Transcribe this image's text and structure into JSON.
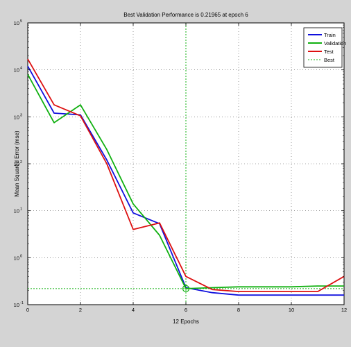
{
  "chart_data": {
    "type": "line",
    "title": "Best Validation Performance is 0.21965 at epoch 6",
    "xlabel": "12 Epochs",
    "ylabel": "Mean Squared Error  (mse)",
    "xlim": [
      0,
      12
    ],
    "ylim": [
      0.1,
      100000
    ],
    "yscale": "log",
    "grid": true,
    "legend_position": "top-right",
    "x_ticks": [
      0,
      2,
      4,
      6,
      8,
      10,
      12
    ],
    "x_tick_labels": [
      "0",
      "2",
      "4",
      "6",
      "8",
      "10",
      "12"
    ],
    "y_ticks": [
      0.1,
      1,
      10,
      100,
      1000,
      10000,
      100000
    ],
    "y_tick_labels": [
      {
        "base": "10",
        "exp": "-1"
      },
      {
        "base": "10",
        "exp": "0"
      },
      {
        "base": "10",
        "exp": "1"
      },
      {
        "base": "10",
        "exp": "2"
      },
      {
        "base": "10",
        "exp": "3"
      },
      {
        "base": "10",
        "exp": "4"
      },
      {
        "base": "10",
        "exp": "5"
      }
    ],
    "series": [
      {
        "name": "Train",
        "color": "#1010dd",
        "x": [
          0,
          1,
          2,
          3,
          4,
          5,
          6,
          7,
          8,
          9,
          10,
          11,
          12
        ],
        "y": [
          12000,
          1200,
          1100,
          120,
          9,
          5.3,
          0.23,
          0.18,
          0.16,
          0.16,
          0.16,
          0.16,
          0.16
        ]
      },
      {
        "name": "Validation",
        "color": "#10b010",
        "x": [
          0,
          1,
          2,
          3,
          4,
          5,
          6,
          7,
          8,
          9,
          10,
          11,
          12
        ],
        "y": [
          8000,
          750,
          1800,
          200,
          14,
          3,
          0.21965,
          0.23,
          0.24,
          0.24,
          0.24,
          0.25,
          0.25
        ]
      },
      {
        "name": "Test",
        "color": "#dd1010",
        "x": [
          0,
          1,
          2,
          3,
          4,
          5,
          6,
          7,
          8,
          9,
          10,
          11,
          12
        ],
        "y": [
          17000,
          1800,
          1050,
          100,
          4,
          5.5,
          0.4,
          0.21,
          0.19,
          0.19,
          0.19,
          0.19,
          0.4
        ]
      }
    ],
    "best": {
      "name": "Best",
      "color": "#10b010",
      "epoch": 6,
      "value": 0.21965
    }
  }
}
